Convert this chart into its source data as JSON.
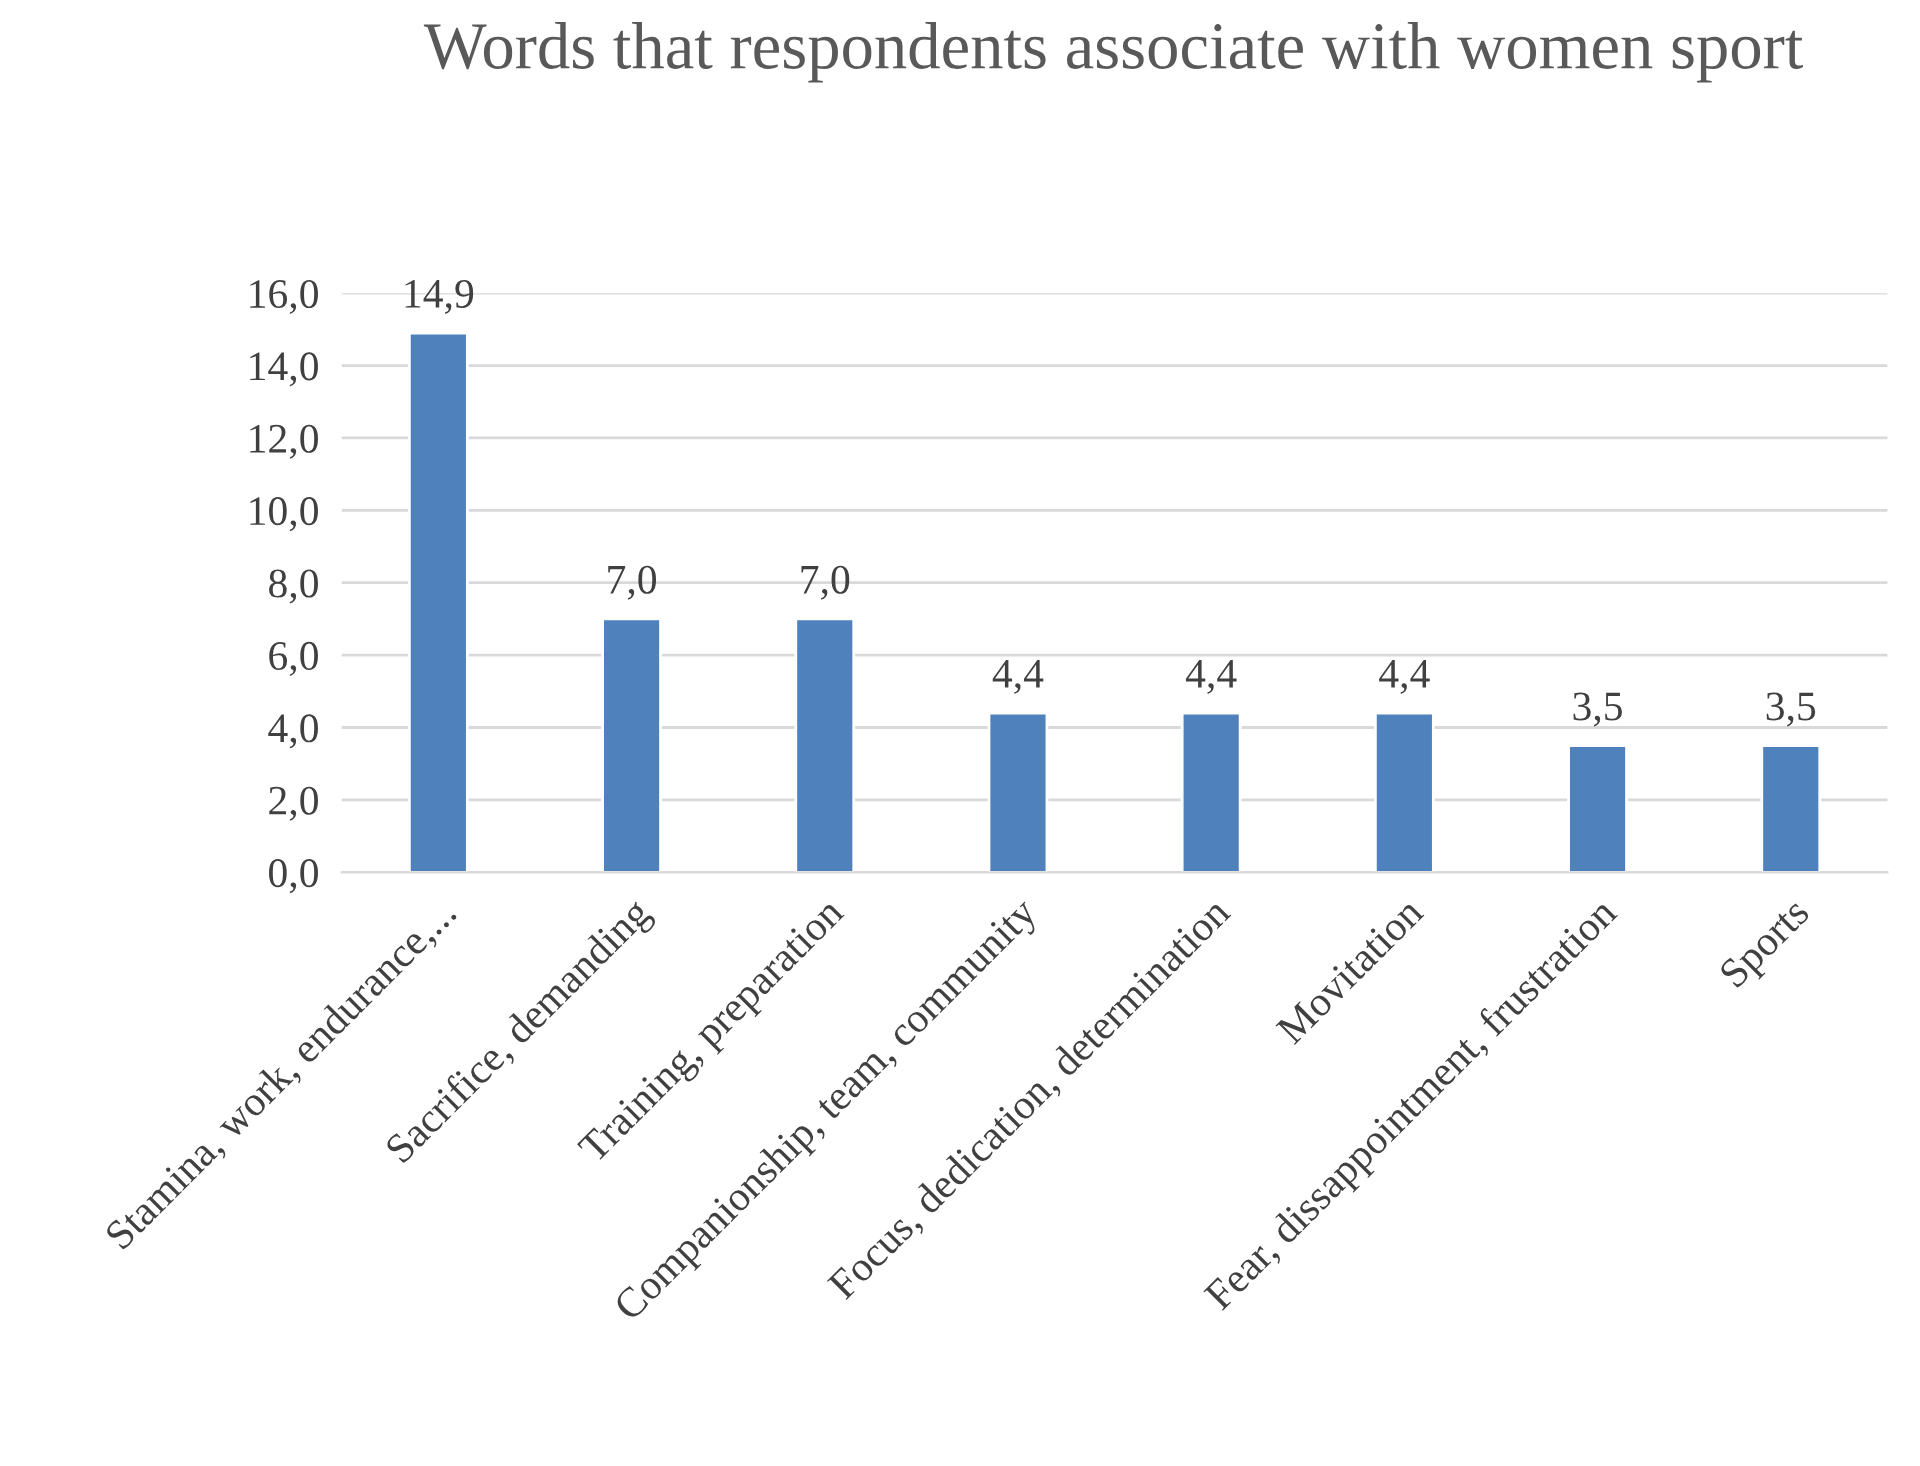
{
  "chart_data": {
    "type": "bar",
    "title": "Words that respondents associate with women sport",
    "categories": [
      "Stamina, work, endurance,...",
      "Sacrifice, demanding",
      "Training, preparation",
      "Companionship, team, community",
      "Focus, dedication, determination",
      "Movitation",
      "Fear, dissappointment, frustration",
      "Sports"
    ],
    "values": [
      14.9,
      7.0,
      7.0,
      4.4,
      4.4,
      4.4,
      3.5,
      3.5
    ],
    "value_labels": [
      "14,9",
      "7,0",
      "7,0",
      "4,4",
      "4,4",
      "4,4",
      "3,5",
      "3,5"
    ],
    "color": "#4f81bd",
    "ylim": [
      0,
      16
    ],
    "yticks": [
      {
        "value": 0,
        "label": "0,0"
      },
      {
        "value": 2,
        "label": "2,0"
      },
      {
        "value": 4,
        "label": "4,0"
      },
      {
        "value": 6,
        "label": "6,0"
      },
      {
        "value": 8,
        "label": "8,0"
      },
      {
        "value": 10,
        "label": "10,0"
      },
      {
        "value": 12,
        "label": "12,0"
      },
      {
        "value": 14,
        "label": "14,0"
      },
      {
        "value": 16,
        "label": "16,0"
      }
    ],
    "grid": "y",
    "legend": false
  }
}
